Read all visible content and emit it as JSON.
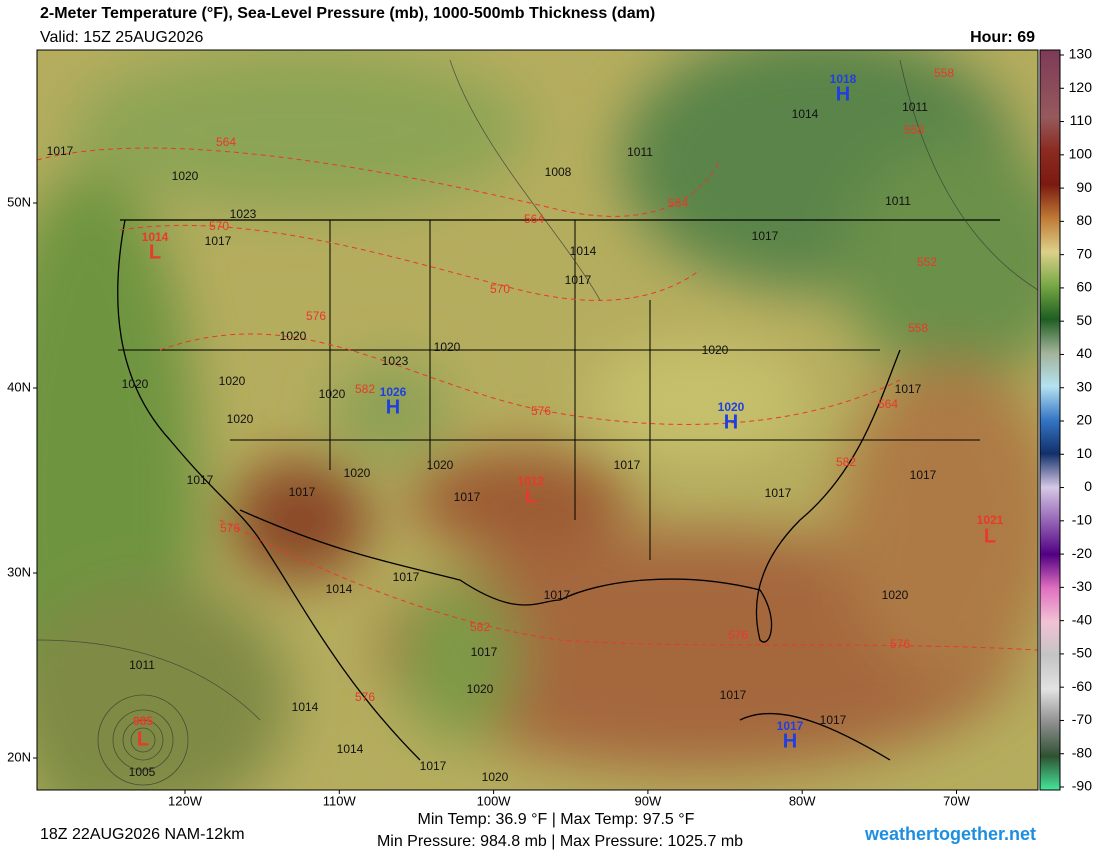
{
  "header": {
    "title": "2-Meter Temperature (°F), Sea-Level Pressure (mb), 1000-500mb Thickness (dam)",
    "valid": "Valid: 15Z 25AUG2026",
    "hour": "Hour: 69"
  },
  "footer": {
    "run": "18Z 22AUG2026 NAM-12km",
    "temp_stats": "Min Temp:  36.9 °F | Max Temp:  97.5 °F",
    "pressure_stats": "Min Pressure: 984.8 mb | Max Pressure: 1025.7 mb",
    "site": "weathertogether.net"
  },
  "lat_ticks": [
    {
      "value": 50,
      "label": "50N"
    },
    {
      "value": 40,
      "label": "40N"
    },
    {
      "value": 30,
      "label": "30N"
    },
    {
      "value": 20,
      "label": "20N"
    }
  ],
  "lon_ticks": [
    {
      "value": -120,
      "label": "120W"
    },
    {
      "value": -110,
      "label": "110W"
    },
    {
      "value": -100,
      "label": "100W"
    },
    {
      "value": -90,
      "label": "90W"
    },
    {
      "value": -80,
      "label": "80W"
    },
    {
      "value": -70,
      "label": "70W"
    }
  ],
  "colorbar": {
    "lim": [
      -90,
      130
    ],
    "ticks": [
      130,
      120,
      110,
      100,
      90,
      80,
      70,
      60,
      50,
      40,
      30,
      20,
      10,
      0,
      -10,
      -20,
      -30,
      -40,
      -50,
      -60,
      -70,
      -80,
      -90
    ],
    "colors": [
      "#7d3a58",
      "#8a4a5a",
      "#955a5c",
      "#8a2a20",
      "#7a1a10",
      "#c07a35",
      "#dcd08a",
      "#78a845",
      "#1f5e22",
      "#a2b39a",
      "#b5e2f0",
      "#3575c5",
      "#12306a",
      "#d6c8e6",
      "#9565b5",
      "#520082",
      "#e070c0",
      "#f2c2d4",
      "#c4c4c4",
      "#e2e2e2",
      "#8e8e8e",
      "#2e5232",
      "#45e59a"
    ]
  },
  "centers": [
    {
      "letter": "H",
      "pressure": "1018"
    },
    {
      "letter": "L",
      "pressure": "1014"
    },
    {
      "letter": "H",
      "pressure": "1026"
    },
    {
      "letter": "H",
      "pressure": "1020"
    },
    {
      "letter": "L",
      "pressure": "1012"
    },
    {
      "letter": "L",
      "pressure": "1021"
    },
    {
      "letter": "H",
      "pressure": "1017"
    },
    {
      "letter": "L",
      "pressure": "985"
    }
  ],
  "isobar_labels": [
    "1017",
    "1020",
    "1023",
    "1017",
    "1008",
    "1011",
    "1014",
    "1017",
    "1017",
    "1011",
    "1011",
    "1014",
    "1020",
    "1023",
    "1020",
    "1020",
    "1020",
    "1020",
    "1020",
    "1020",
    "1017",
    "1017",
    "1017",
    "1017",
    "1017",
    "1020",
    "1020",
    "1017",
    "1017",
    "1017",
    "1014",
    "1017",
    "1017",
    "1020",
    "1020",
    "1017",
    "1017",
    "1011",
    "1014",
    "1014",
    "1005",
    "1017",
    "1020"
  ],
  "thickness_labels": [
    "564",
    "570",
    "564",
    "564",
    "570",
    "576",
    "582",
    "576",
    "558",
    "558",
    "552",
    "558",
    "564",
    "582",
    "576",
    "582",
    "576",
    "576",
    "576"
  ]
}
